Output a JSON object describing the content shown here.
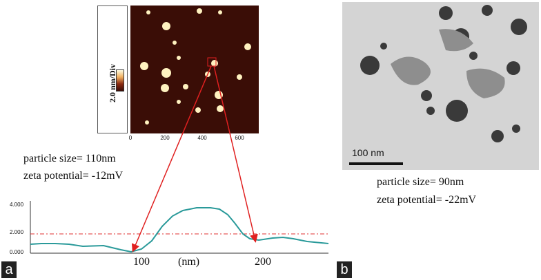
{
  "panel_a": {
    "label": "a",
    "afm_scale_label": "2.0 nm/Div",
    "afm_axis_ticks": [
      "0",
      "200",
      "400",
      "600"
    ],
    "particle_size": "particle size= 110nm",
    "zeta_potential": "zeta potential= -12mV",
    "profile_y_ticks": [
      "4.000",
      "2.000",
      "0.000"
    ],
    "profile_x_tick_1": "100",
    "profile_x_unit": "(nm)",
    "profile_x_tick_2": "200"
  },
  "panel_b": {
    "label": "b",
    "scale_bar_text": "100 nm",
    "particle_size": "particle size= 90nm",
    "zeta_potential": "zeta potential= -22mV"
  },
  "colors": {
    "profile_line": "#2a9a9a",
    "threshold_line": "#e03030",
    "arrow": "#e02020",
    "afm_background": "#3a0d06",
    "afm_particle": "#fff2c0"
  }
}
